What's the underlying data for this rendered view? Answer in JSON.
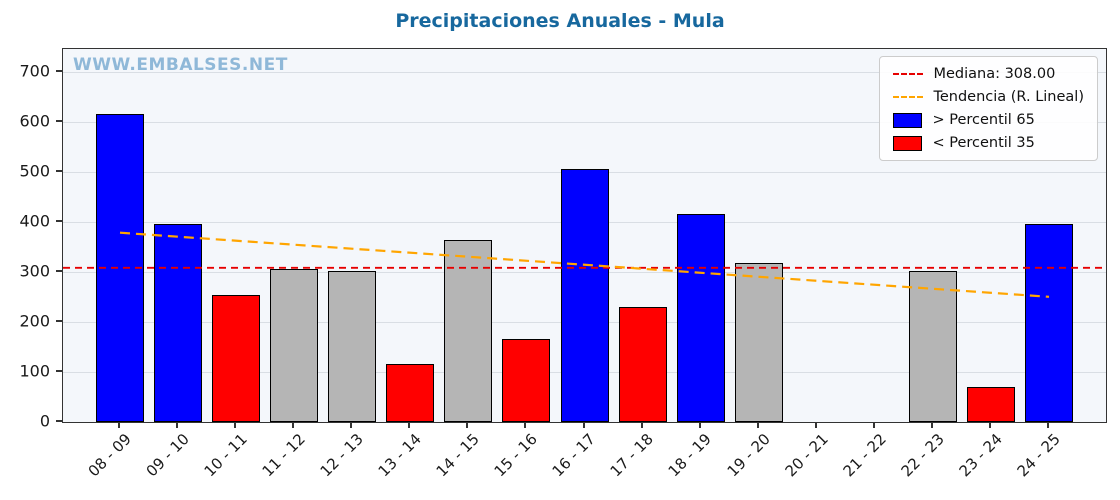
{
  "page": {
    "title": "Precipitaciones Anuales - Mula",
    "watermark": "WWW.EMBALSES.NET"
  },
  "legend": {
    "items": [
      {
        "label": "Mediana: 308.00",
        "type": "dashed-line",
        "color": "#e60000"
      },
      {
        "label": "Tendencia (R. Lineal)",
        "type": "dashed-line",
        "color": "#ffa500"
      },
      {
        "label": "> Percentil 65",
        "type": "patch",
        "color": "#0000ff"
      },
      {
        "label": "< Percentil 35",
        "type": "patch",
        "color": "#ff0000"
      }
    ]
  },
  "chart_data": {
    "type": "bar",
    "title": "Precipitaciones Anuales - Mula",
    "categories": [
      "08 - 09",
      "09 - 10",
      "10 - 11",
      "11 - 12",
      "12 - 13",
      "13 - 14",
      "14 - 15",
      "15 - 16",
      "16 - 17",
      "17 - 18",
      "18 - 19",
      "19 - 20",
      "20 - 21",
      "21 - 22",
      "22 - 23",
      "23 - 24",
      "24 - 25"
    ],
    "values": [
      615,
      395,
      253,
      306,
      302,
      116,
      363,
      166,
      505,
      229,
      416,
      318,
      0,
      0,
      302,
      71,
      396
    ],
    "bar_colors": [
      "blue",
      "blue",
      "red",
      "gray",
      "gray",
      "red",
      "gray",
      "red",
      "blue",
      "red",
      "blue",
      "gray",
      null,
      null,
      "gray",
      "red",
      "blue"
    ],
    "median": 308,
    "trend_line": {
      "start_value": 378,
      "end_value": 250
    },
    "ylim": [
      0,
      745
    ],
    "yticks": [
      0,
      100,
      200,
      300,
      400,
      500,
      600,
      700
    ],
    "xlabel": "",
    "ylabel": "",
    "grid": true,
    "legend_position": "upper right"
  },
  "colors": {
    "blue": "#0000ff",
    "red": "#ff0000",
    "gray": "#b5b5b5",
    "bar_edge": "#000000",
    "median_line": "#e60000",
    "trend_line": "#ffa500",
    "title": "#17689e",
    "watermark": "#8fb8d8",
    "plot_bg": "#f4f7fb",
    "grid": "#d9dee4"
  }
}
